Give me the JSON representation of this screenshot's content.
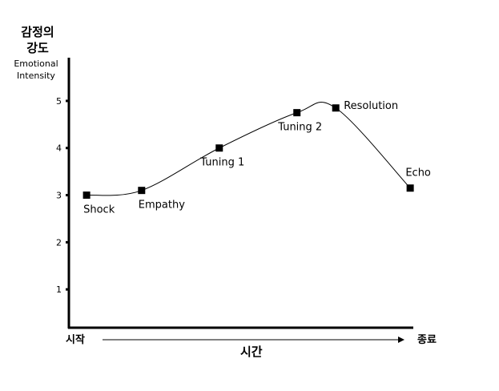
{
  "chart_data": {
    "type": "line",
    "ylabel": "감정의 강도",
    "ylabel_secondary": "Emotional Intensity",
    "xlabel": "시간",
    "x_start_label": "시작",
    "x_end_label": "종료",
    "y_ticks": [
      "1",
      "2",
      "3",
      "4",
      "5"
    ],
    "ylim": [
      0,
      5.9
    ],
    "xlim": [
      0,
      100
    ],
    "grid": false,
    "series": [
      {
        "points": [
          {
            "label": "Shock",
            "x": 3,
            "y": 3.0
          },
          {
            "label": "Empathy",
            "x": 20,
            "y": 3.1
          },
          {
            "label": "Tuning 1",
            "x": 44,
            "y": 4.0
          },
          {
            "label": "Tuning 2",
            "x": 68,
            "y": 4.75
          },
          {
            "label": "Resolution",
            "x": 80,
            "y": 4.85
          },
          {
            "label": "Echo",
            "x": 103,
            "y": 3.15
          }
        ]
      }
    ]
  }
}
